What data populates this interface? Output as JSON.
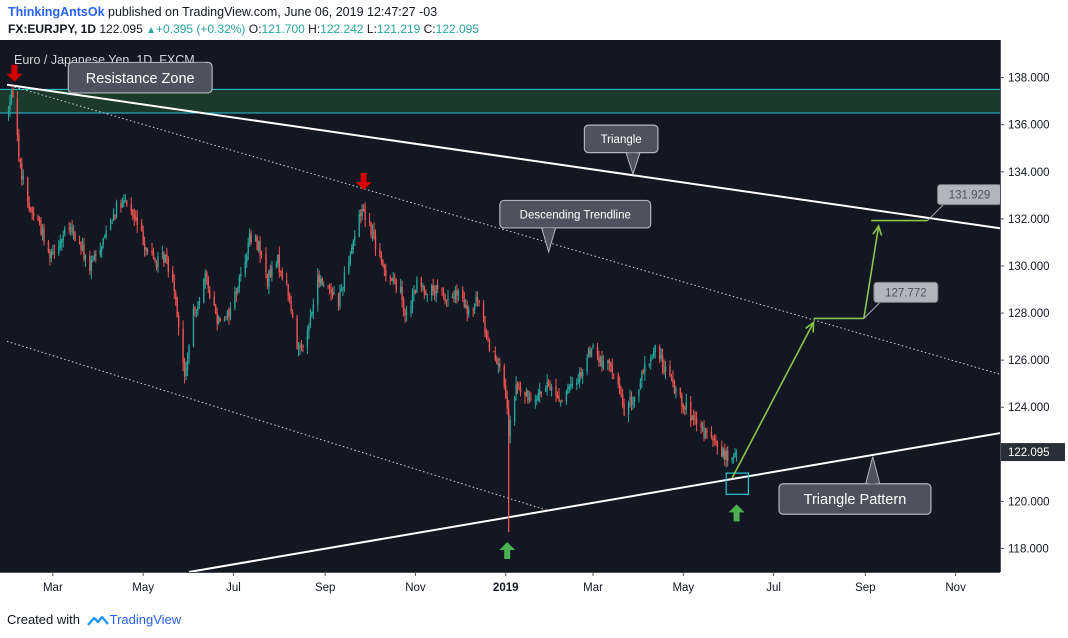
{
  "header": {
    "author": "ThinkingAntsOk",
    "published_text": "published on TradingView.com, June 06, 2019 12:47:27 -03",
    "symbol": "FX:EURJPY, 1D",
    "last": "122.095",
    "change": "+0.395 (+0.32%)",
    "o_label": "O:",
    "o_value": "121.700",
    "h_label": "H:",
    "h_value": "122.242",
    "l_label": "L:",
    "l_value": "121.219",
    "c_label": "C:",
    "c_value": "122.095"
  },
  "footer": {
    "created_with": "Created with",
    "brand": "TradingView"
  },
  "colors": {
    "background": "#131722",
    "up": "#26a69a",
    "down": "#ef5350",
    "resistance_fill": "#1b3a2c",
    "resistance_border": "#26c6da",
    "projection": "#8bc34a",
    "arrow_down": "#d50000",
    "arrow_up": "#4caf50",
    "label_bg": "#4c525e",
    "price_tag_bg": "#b2b5be",
    "last_price_bg": "#2a2e39"
  },
  "chart_data": {
    "type": "candlestick",
    "instrument_title": "Euro / Japanese Yen, 1D, FXCM",
    "last_price": "122.095",
    "ylim": [
      117.0,
      139.6
    ],
    "y_ticks": [
      "118.000",
      "120.000",
      "122.000",
      "124.000",
      "126.000",
      "128.000",
      "130.000",
      "132.000",
      "134.000",
      "136.000",
      "138.000"
    ],
    "x_range": [
      "2018-01-29",
      "2019-12-01"
    ],
    "x_ticks": [
      {
        "label": "Mar",
        "date": "2018-03-01"
      },
      {
        "label": "May",
        "date": "2018-05-01"
      },
      {
        "label": "Jul",
        "date": "2018-07-01"
      },
      {
        "label": "Sep",
        "date": "2018-09-01"
      },
      {
        "label": "Nov",
        "date": "2018-11-01"
      },
      {
        "label": "2019",
        "date": "2019-01-01",
        "bold": true
      },
      {
        "label": "Mar",
        "date": "2019-03-01"
      },
      {
        "label": "May",
        "date": "2019-05-01"
      },
      {
        "label": "Jul",
        "date": "2019-07-01"
      },
      {
        "label": "Sep",
        "date": "2019-09-01"
      },
      {
        "label": "Nov",
        "date": "2019-11-01"
      }
    ],
    "price_path": [
      [
        "2018-01-29",
        136.5
      ],
      [
        "2018-02-02",
        137.4
      ],
      [
        "2018-02-07",
        134.2
      ],
      [
        "2018-02-13",
        132.5
      ],
      [
        "2018-02-20",
        131.8
      ],
      [
        "2018-02-26",
        130.5
      ],
      [
        "2018-03-05",
        131.0
      ],
      [
        "2018-03-12",
        131.6
      ],
      [
        "2018-03-20",
        130.8
      ],
      [
        "2018-03-26",
        129.9
      ],
      [
        "2018-04-03",
        131.0
      ],
      [
        "2018-04-12",
        132.4
      ],
      [
        "2018-04-20",
        132.7
      ],
      [
        "2018-04-26",
        131.9
      ],
      [
        "2018-05-03",
        130.8
      ],
      [
        "2018-05-10",
        130.1
      ],
      [
        "2018-05-16",
        130.4
      ],
      [
        "2018-05-22",
        129.2
      ],
      [
        "2018-05-29",
        125.2
      ],
      [
        "2018-06-04",
        127.9
      ],
      [
        "2018-06-12",
        129.5
      ],
      [
        "2018-06-20",
        127.8
      ],
      [
        "2018-06-28",
        128.0
      ],
      [
        "2018-07-06",
        129.6
      ],
      [
        "2018-07-12",
        131.2
      ],
      [
        "2018-07-18",
        130.9
      ],
      [
        "2018-07-24",
        129.4
      ],
      [
        "2018-07-31",
        130.2
      ],
      [
        "2018-08-07",
        128.9
      ],
      [
        "2018-08-13",
        126.5
      ],
      [
        "2018-08-20",
        127.1
      ],
      [
        "2018-08-27",
        129.4
      ],
      [
        "2018-09-04",
        129.1
      ],
      [
        "2018-09-10",
        128.5
      ],
      [
        "2018-09-17",
        130.4
      ],
      [
        "2018-09-26",
        132.5
      ],
      [
        "2018-10-02",
        131.6
      ],
      [
        "2018-10-09",
        130.0
      ],
      [
        "2018-10-15",
        129.6
      ],
      [
        "2018-10-22",
        128.9
      ],
      [
        "2018-10-26",
        127.8
      ],
      [
        "2018-11-02",
        129.2
      ],
      [
        "2018-11-08",
        129.0
      ],
      [
        "2018-11-16",
        128.9
      ],
      [
        "2018-11-22",
        128.6
      ],
      [
        "2018-11-30",
        128.8
      ],
      [
        "2018-12-07",
        127.9
      ],
      [
        "2018-12-13",
        128.6
      ],
      [
        "2018-12-21",
        126.6
      ],
      [
        "2018-12-28",
        125.9
      ],
      [
        "2019-01-02",
        123.8
      ],
      [
        "2019-01-03",
        122.8
      ],
      [
        "2019-01-08",
        124.9
      ],
      [
        "2019-01-15",
        124.4
      ],
      [
        "2019-01-23",
        124.6
      ],
      [
        "2019-01-31",
        124.9
      ],
      [
        "2019-02-07",
        124.3
      ],
      [
        "2019-02-14",
        124.8
      ],
      [
        "2019-02-22",
        125.6
      ],
      [
        "2019-02-28",
        126.6
      ],
      [
        "2019-03-07",
        125.8
      ],
      [
        "2019-03-14",
        125.7
      ],
      [
        "2019-03-22",
        123.9
      ],
      [
        "2019-03-29",
        124.4
      ],
      [
        "2019-04-05",
        125.6
      ],
      [
        "2019-04-12",
        126.5
      ],
      [
        "2019-04-19",
        125.6
      ],
      [
        "2019-04-26",
        124.7
      ],
      [
        "2019-05-03",
        124.0
      ],
      [
        "2019-05-10",
        123.1
      ],
      [
        "2019-05-16",
        122.9
      ],
      [
        "2019-05-23",
        122.4
      ],
      [
        "2019-05-30",
        121.9
      ],
      [
        "2019-06-03",
        121.7
      ],
      [
        "2019-06-06",
        122.1
      ]
    ],
    "spike_low": {
      "date": "2019-01-03",
      "price": 118.7
    },
    "resistance_zone": {
      "low": 136.5,
      "high": 137.5
    },
    "triangle_upper": [
      [
        "2018-01-29",
        137.7
      ],
      [
        "2019-12-01",
        131.6
      ]
    ],
    "triangle_lower": [
      [
        "2018-06-01",
        117.0
      ],
      [
        "2019-12-01",
        122.9
      ]
    ],
    "descending_trendline": [
      [
        "2018-01-29",
        137.7
      ],
      [
        "2019-12-01",
        125.4
      ]
    ],
    "lower_channel_line": [
      [
        "2018-01-29",
        126.8
      ],
      [
        "2019-01-30",
        119.6
      ]
    ],
    "buy_box": {
      "x0": "2019-05-30",
      "x1": "2019-06-14",
      "low": 120.3,
      "high": 121.2
    },
    "projection_path": [
      [
        "2019-06-03",
        121.0
      ],
      [
        "2019-07-28",
        127.6
      ]
    ],
    "target_1": {
      "x0": "2019-07-28",
      "x1": "2019-08-31",
      "price": 127.772,
      "label": "127.772"
    },
    "projection_path_2": [
      [
        "2019-08-31",
        127.772
      ],
      [
        "2019-09-10",
        131.7
      ]
    ],
    "target_2": {
      "x0": "2019-09-05",
      "x1": "2019-10-13",
      "price": 131.929,
      "label": "131.929"
    },
    "markers": [
      {
        "type": "arrow_down",
        "date": "2018-02-03",
        "price": 137.7
      },
      {
        "type": "arrow_down",
        "date": "2018-09-27",
        "price": 133.1
      },
      {
        "type": "arrow_up",
        "date": "2019-01-02",
        "price": 118.4
      },
      {
        "type": "arrow_up",
        "date": "2019-06-06",
        "price": 120.0
      }
    ],
    "annotations": [
      {
        "text": "Resistance Zone",
        "box": {
          "date": "2018-04-29",
          "price": 138.0
        },
        "tip": {
          "date": "2018-06-12",
          "price": 137.5
        }
      },
      {
        "text": "Triangle",
        "box": {
          "date": "2019-03-20",
          "price": 135.4
        },
        "tip": {
          "date": "2019-03-28",
          "price": 133.9
        }
      },
      {
        "text": "Descending Trendline",
        "box": {
          "date": "2019-02-17",
          "price": 132.2
        },
        "tip": {
          "date": "2019-01-30",
          "price": 130.6
        }
      },
      {
        "text": "Triangle Pattern",
        "box": {
          "date": "2019-08-25",
          "price": 120.1
        },
        "tip": {
          "date": "2019-09-06",
          "price": 121.9
        }
      }
    ]
  }
}
